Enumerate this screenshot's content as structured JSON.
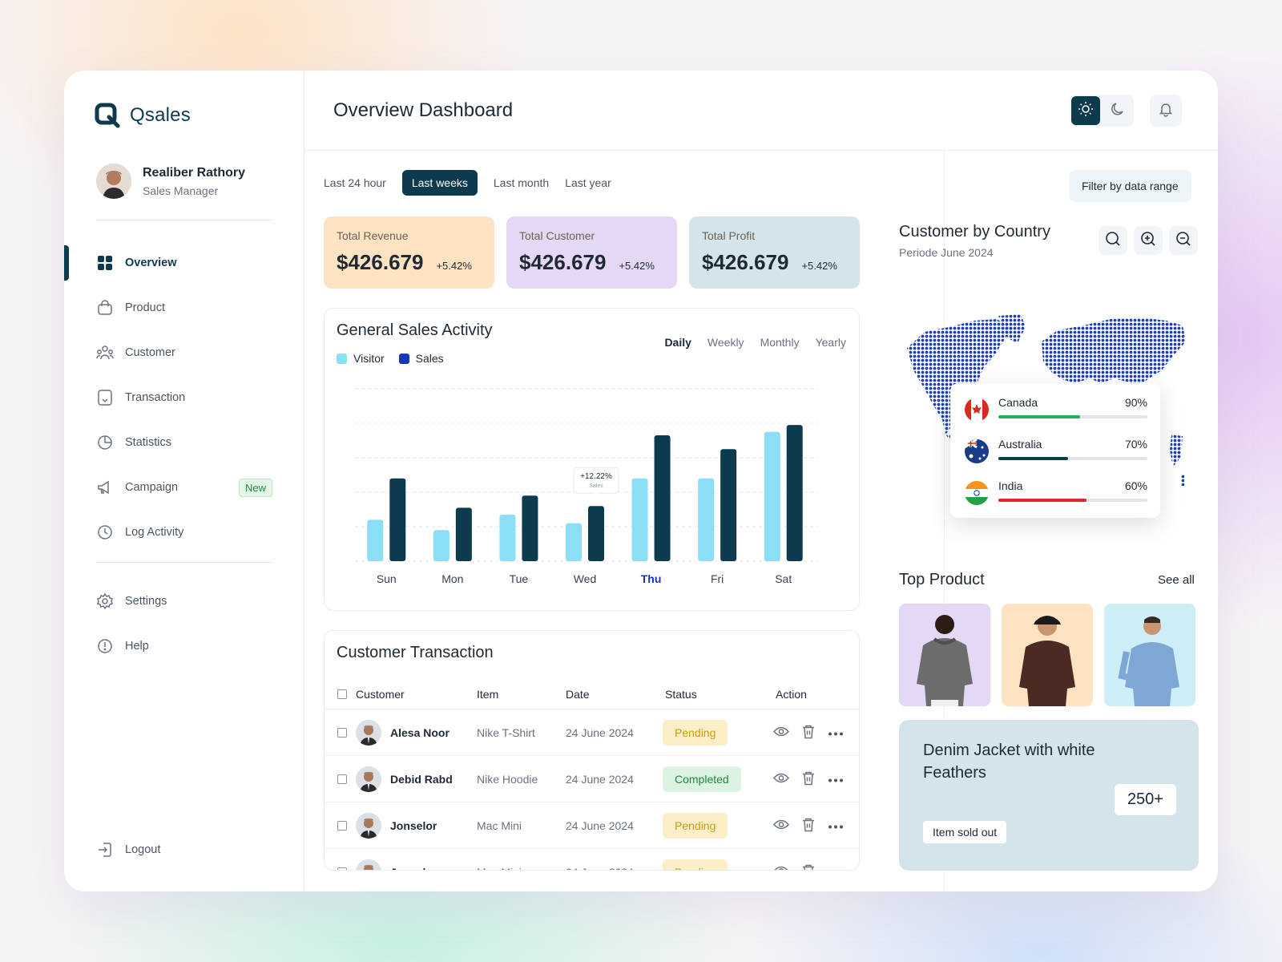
{
  "brand": {
    "name": "Qsales"
  },
  "user": {
    "name": "Realiber Rathory",
    "role": "Sales Manager"
  },
  "nav": {
    "items": [
      {
        "label": "Overview",
        "icon": "grid-icon"
      },
      {
        "label": "Product",
        "icon": "bag-icon"
      },
      {
        "label": "Customer",
        "icon": "users-icon"
      },
      {
        "label": "Transaction",
        "icon": "receipt-icon"
      },
      {
        "label": "Statistics",
        "icon": "pie-chart-icon"
      },
      {
        "label": "Campaign",
        "icon": "megaphone-icon",
        "badge": "New"
      },
      {
        "label": "Log Activity",
        "icon": "clock-icon"
      }
    ],
    "bottom": [
      {
        "label": "Settings",
        "icon": "gear-icon"
      },
      {
        "label": "Help",
        "icon": "alert-circle-icon"
      }
    ],
    "logout": "Logout"
  },
  "header": {
    "title": "Overview Dashboard"
  },
  "period_tabs": [
    "Last 24 hour",
    "Last weeks",
    "Last month",
    "Last year"
  ],
  "kpis": [
    {
      "label": "Total Revenue",
      "value": "$426.679",
      "change": "+5.42%",
      "color": "#fde3c2"
    },
    {
      "label": "Total Customer",
      "value": "$426.679",
      "change": "+5.42%",
      "color": "#e5d8f5"
    },
    {
      "label": "Total Profit",
      "value": "$426.679",
      "change": "+5.42%",
      "color": "#d3e5ea"
    }
  ],
  "sales_card": {
    "title": "General Sales Activity",
    "range_tabs": [
      "Daily",
      "Weekly",
      "Monthly",
      "Yearly"
    ],
    "tooltip": {
      "value": "+12.22%",
      "label": "Sales"
    }
  },
  "chart_data": {
    "type": "bar",
    "categories": [
      "Sun",
      "Mon",
      "Tue",
      "Wed",
      "Thu",
      "Fri",
      "Sat"
    ],
    "highlight": "Thu",
    "series": [
      {
        "name": "Visitor",
        "color": "#8adff7",
        "values": [
          24,
          18,
          27,
          22,
          48,
          48,
          75
        ]
      },
      {
        "name": "Sales",
        "color": "#0e3a4e",
        "values": [
          48,
          31,
          38,
          32,
          73,
          65,
          79
        ]
      }
    ],
    "ylim": [
      0,
      100
    ],
    "grid": true,
    "legend": "top-left"
  },
  "transactions": {
    "title": "Customer Transaction",
    "columns": [
      "Customer",
      "Item",
      "Date",
      "Status",
      "Action"
    ],
    "rows": [
      {
        "customer": "Alesa Noor",
        "item": "Nike T-Shirt",
        "date": "24 June 2024",
        "status": "Pending"
      },
      {
        "customer": "Debid Rabd",
        "item": "Nike Hoodie",
        "date": "24 June 2024",
        "status": "Completed"
      },
      {
        "customer": "Jonselor",
        "item": "Mac Mini",
        "date": "24 June 2024",
        "status": "Pending"
      }
    ]
  },
  "filter_button": "Filter by data range",
  "country_card": {
    "title": "Customer by Country",
    "subtitle": "Periode June 2024",
    "countries": [
      {
        "name": "Canada",
        "percent": "90%",
        "value": 0.55,
        "color": "#22b05a"
      },
      {
        "name": "Australia",
        "percent": "70%",
        "value": 0.47,
        "color": "#0e3a4e"
      },
      {
        "name": "India",
        "percent": "60%",
        "value": 0.59,
        "color": "#e0242b"
      }
    ]
  },
  "top_product": {
    "title": "Top Product",
    "see_all": "See all",
    "products": [
      {
        "bg": "#e5d8f5",
        "hoodie": "#6c6c6c"
      },
      {
        "bg": "#fde3c2",
        "hoodie": "#4a2a22"
      },
      {
        "bg": "#cdeef6",
        "hoodie": "#7fa7d6"
      }
    ]
  },
  "promo": {
    "title": "Denim Jacket with white Feathers",
    "count": "250+",
    "button": "Item sold out"
  }
}
